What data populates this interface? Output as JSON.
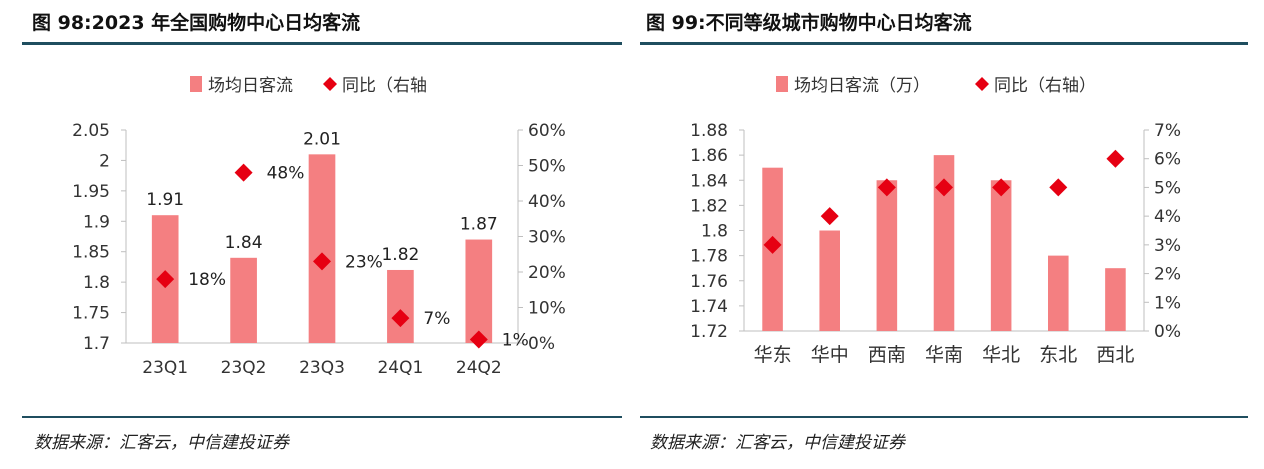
{
  "left": {
    "title": "图 98:2023 年全国购物中心日均客流",
    "source": "数据来源：汇客云，中信建投证券",
    "chart_data": {
      "type": "bar",
      "categories": [
        "23Q1",
        "23Q2",
        "23Q3",
        "24Q1",
        "24Q2"
      ],
      "series": [
        {
          "name": "场均日客流",
          "values": [
            1.91,
            1.84,
            2.01,
            1.82,
            1.87
          ],
          "color": "#f47f81",
          "axis": "left",
          "mark": "bar"
        },
        {
          "name": "同比（右轴",
          "values": [
            18,
            48,
            23,
            7,
            1
          ],
          "color": "#e60012",
          "axis": "right",
          "mark": "diamond"
        }
      ],
      "bar_labels": [
        "1.91",
        "1.84",
        "2.01",
        "1.82",
        "1.87"
      ],
      "point_labels": [
        "18%",
        "48%",
        "23%",
        "7%",
        "1%"
      ],
      "ylim": [
        1.7,
        2.05
      ],
      "yticks": [
        "1.7",
        "1.75",
        "1.8",
        "1.85",
        "1.9",
        "1.95",
        "2",
        "2.05"
      ],
      "y2lim": [
        0,
        60
      ],
      "y2ticks": [
        "0%",
        "10%",
        "20%",
        "30%",
        "40%",
        "50%",
        "60%"
      ],
      "grid": false,
      "legend": "top"
    }
  },
  "right": {
    "title": "图 99:不同等级城市购物中心日均客流",
    "source": "数据来源：汇客云，中信建投证券",
    "chart_data": {
      "type": "bar",
      "categories": [
        "华东",
        "华中",
        "西南",
        "华南",
        "华北",
        "东北",
        "西北"
      ],
      "series": [
        {
          "name": "场均日客流（万）",
          "values": [
            1.85,
            1.8,
            1.84,
            1.86,
            1.84,
            1.78,
            1.77
          ],
          "color": "#f47f81",
          "axis": "left",
          "mark": "bar"
        },
        {
          "name": "同比（右轴）",
          "values": [
            3,
            4,
            5,
            5,
            5,
            5,
            6
          ],
          "color": "#e60012",
          "axis": "right",
          "mark": "diamond"
        }
      ],
      "ylim": [
        1.72,
        1.88
      ],
      "yticks": [
        "1.72",
        "1.74",
        "1.76",
        "1.78",
        "1.8",
        "1.82",
        "1.84",
        "1.86",
        "1.88"
      ],
      "y2lim": [
        0,
        7
      ],
      "y2ticks": [
        "0%",
        "1%",
        "2%",
        "3%",
        "4%",
        "5%",
        "6%",
        "7%"
      ],
      "grid": false,
      "legend": "top"
    }
  }
}
